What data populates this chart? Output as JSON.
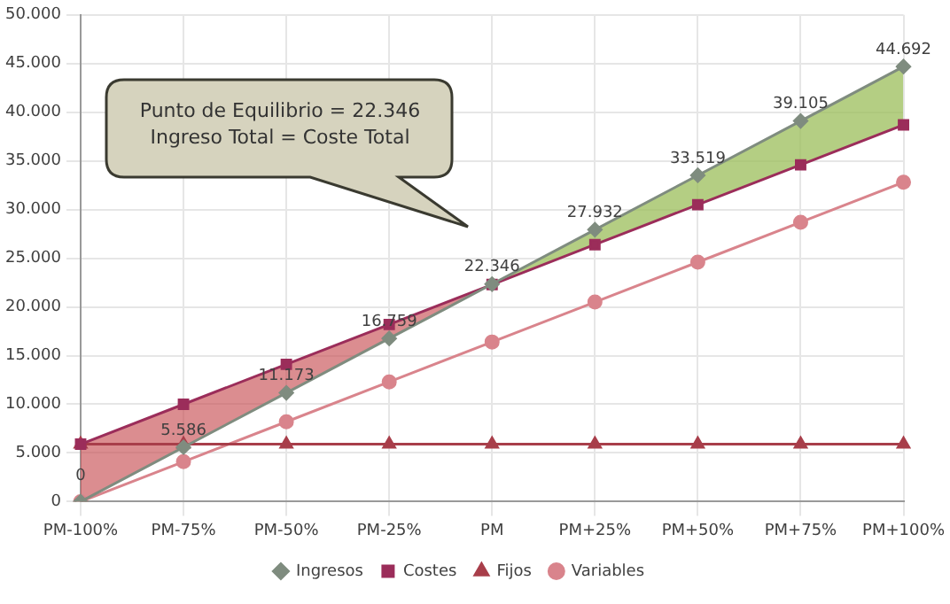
{
  "chart_data": {
    "type": "line",
    "categories": [
      "PM-100%",
      "PM-75%",
      "PM-50%",
      "PM-25%",
      "PM",
      "PM+25%",
      "PM+50%",
      "PM+75%",
      "PM+100%"
    ],
    "series": [
      {
        "name": "Ingresos",
        "color": "#7f8c7f",
        "marker": "diamond",
        "values": [
          0,
          5586,
          11173,
          16759,
          22346,
          27932,
          33519,
          39105,
          44692
        ],
        "value_labels": [
          "0",
          "5.586",
          "11.173",
          "16.759",
          "22.346",
          "27.932",
          "33.519",
          "39.105",
          "44.692"
        ],
        "lower": [
          5900,
          10000,
          14100,
          18200,
          22300,
          26400,
          30500,
          34600,
          38700
        ],
        "upper": [
          0,
          5586,
          11173,
          16759,
          22346,
          27932,
          33519,
          39105,
          44692
        ]
      },
      {
        "name": "Costes",
        "color": "#9b2d5a",
        "marker": "square",
        "values": [
          5900,
          10000,
          14100,
          18200,
          22300,
          26400,
          30500,
          34600,
          38700
        ]
      },
      {
        "name": "Fijos",
        "color": "#a83e4a",
        "marker": "triangle",
        "values": [
          5900,
          5900,
          5900,
          5900,
          5900,
          5900,
          5900,
          5900,
          5900
        ]
      },
      {
        "name": "Variables",
        "color": "#d9848c",
        "marker": "circle",
        "values": [
          0,
          4100,
          8200,
          12300,
          16400,
          20500,
          24600,
          28700,
          32800
        ]
      }
    ],
    "ylim": [
      0,
      50000
    ],
    "yticks": [
      {
        "value": 0,
        "label": "0"
      },
      {
        "value": 5000,
        "label": "5.000"
      },
      {
        "value": 10000,
        "label": "10.000"
      },
      {
        "value": 15000,
        "label": "15.000"
      },
      {
        "value": 20000,
        "label": "20.000"
      },
      {
        "value": 25000,
        "label": "25.000"
      },
      {
        "value": 30000,
        "label": "30.000"
      },
      {
        "value": 35000,
        "label": "35.000"
      },
      {
        "value": 40000,
        "label": "40.000"
      },
      {
        "value": 45000,
        "label": "45.000"
      },
      {
        "value": 50000,
        "label": "50.000"
      }
    ],
    "grid": true,
    "legend": "bottom",
    "annotations": [
      "Punto de Equilibrio = 22.346\nIngreso Total = Coste Total"
    ]
  }
}
